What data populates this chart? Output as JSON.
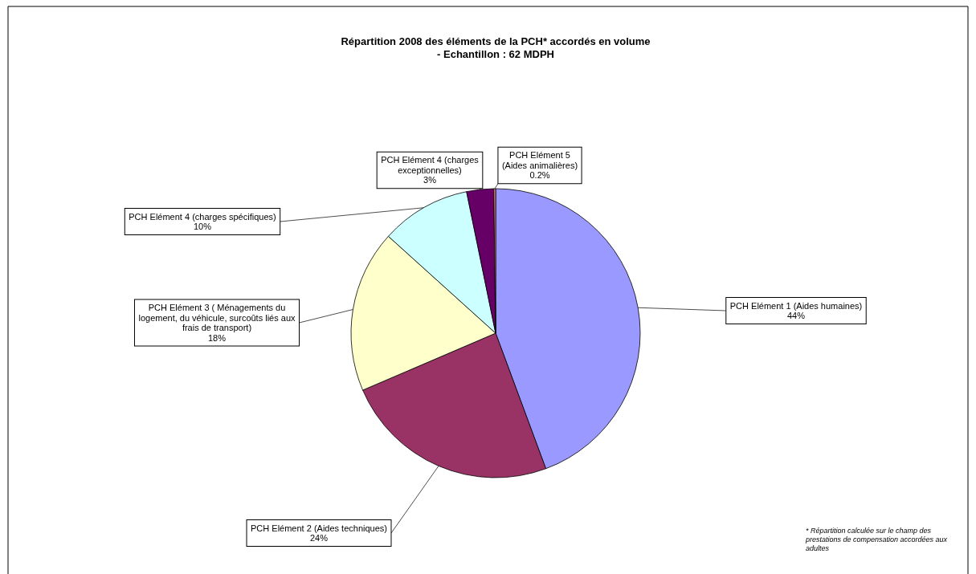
{
  "chart_data": {
    "type": "pie",
    "title": "Répartition 2008 des éléments de la PCH* accordés en volume",
    "subtitle": "- Echantillon : 62 MDPH",
    "categories": [
      "PCH Elément 1 (Aides humaines)",
      "PCH Elément 2 (Aides techniques)",
      "PCH Elément 3 ( Ménagements du logement, du véhicule, surcoûts liés aux frais de transport)",
      "PCH Elément 4 (charges spécifiques)",
      "PCH Elément 4 (charges exceptionnelles)",
      "PCH Elément 5 (Aides animalières)"
    ],
    "values": [
      44,
      24,
      18,
      10,
      3,
      0.2
    ],
    "value_labels": [
      "44%",
      "24%",
      "18%",
      "10%",
      "3%",
      "0.2%"
    ],
    "colors": [
      "#9999ff",
      "#993366",
      "#ffffcc",
      "#ccffff",
      "#660066",
      "#ff8080"
    ],
    "annotations": [
      "* Répartition calculée sur le champ des prestations de compensation accordées aux adultes"
    ]
  }
}
